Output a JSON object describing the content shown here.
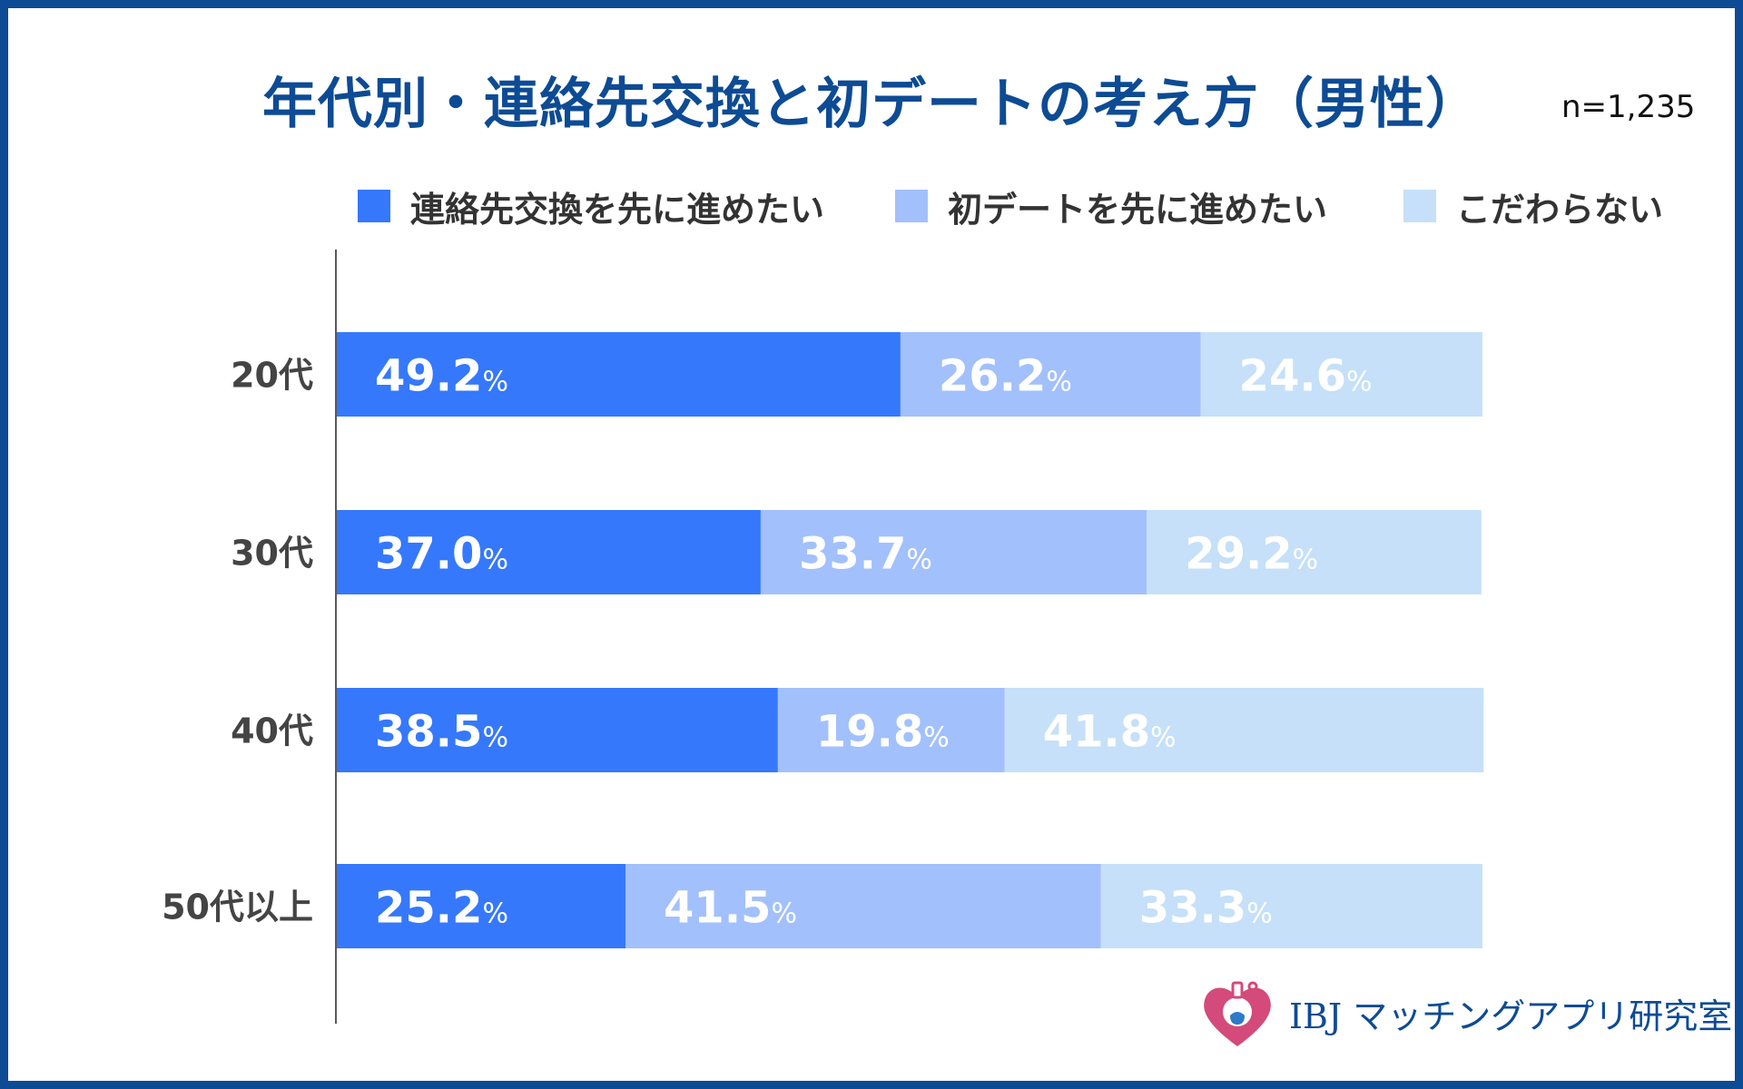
{
  "chart_data": {
    "type": "bar",
    "orientation": "horizontal",
    "stacked": true,
    "title": "年代別・連絡先交換と初デートの考え方（男性）",
    "sample_size": "n=1,235",
    "categories": [
      "20代",
      "30代",
      "40代",
      "50代以上"
    ],
    "series": [
      {
        "name": "連絡先交換を先に進めたい",
        "color": "#3578fc",
        "values": [
          49.2,
          37.0,
          38.5,
          25.2
        ]
      },
      {
        "name": "初デートを先に進めたい",
        "color": "#a2c0fc",
        "values": [
          26.2,
          33.7,
          19.8,
          41.5
        ]
      },
      {
        "name": "こだわらない",
        "color": "#c5e0f8",
        "values": [
          24.6,
          29.2,
          41.8,
          33.3
        ]
      }
    ],
    "value_suffix": "%",
    "xlim": [
      0,
      100
    ],
    "grid": false,
    "legend": "top"
  },
  "brand": {
    "name": "IBJ マッチングアプリ研究室",
    "icon": "heart-flask-icon",
    "color": "#0d4b94",
    "icon_color": "#d44a7a"
  },
  "colors": {
    "title": "#0d4b94",
    "frame": "#0d4b94"
  }
}
